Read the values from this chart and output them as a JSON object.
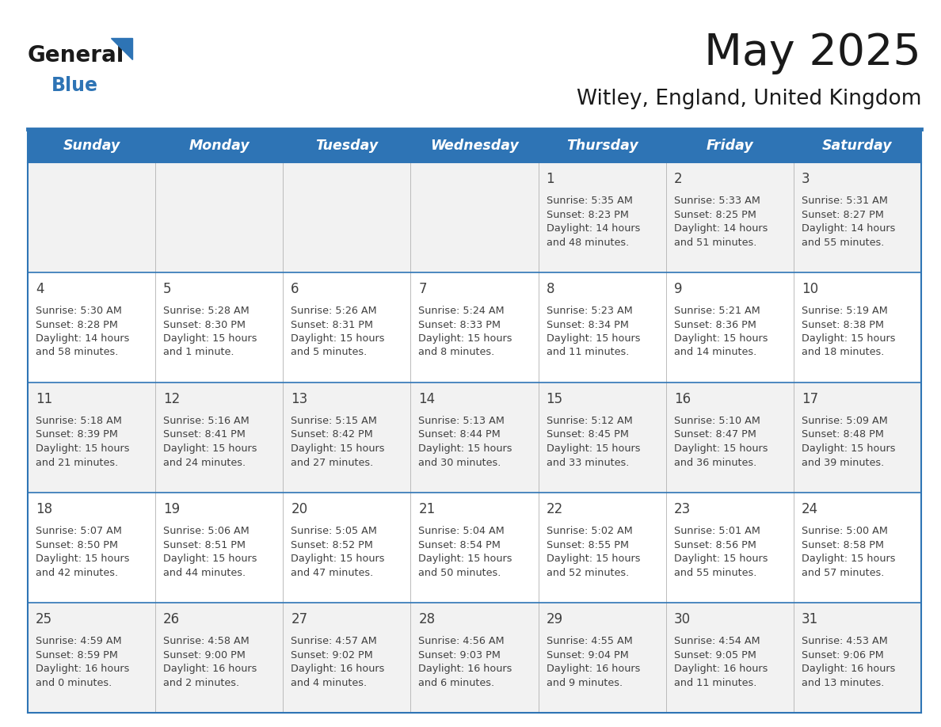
{
  "title": "May 2025",
  "subtitle": "Witley, England, United Kingdom",
  "days_of_week": [
    "Sunday",
    "Monday",
    "Tuesday",
    "Wednesday",
    "Thursday",
    "Friday",
    "Saturday"
  ],
  "header_bg": "#2E74B5",
  "header_text": "#FFFFFF",
  "cell_bg_odd": "#F2F2F2",
  "cell_bg_even": "#FFFFFF",
  "grid_line_color": "#2E74B5",
  "text_color": "#404040",
  "title_color": "#1a1a1a",
  "logo_text_color": "#1a1a1a",
  "logo_blue_color": "#2E74B5",
  "calendar_data": [
    [
      null,
      null,
      null,
      null,
      {
        "day": "1",
        "sunrise": "5:35 AM",
        "sunset": "8:23 PM",
        "daylight_h": "14 hours",
        "daylight_m": "and 48 minutes."
      },
      {
        "day": "2",
        "sunrise": "5:33 AM",
        "sunset": "8:25 PM",
        "daylight_h": "14 hours",
        "daylight_m": "and 51 minutes."
      },
      {
        "day": "3",
        "sunrise": "5:31 AM",
        "sunset": "8:27 PM",
        "daylight_h": "14 hours",
        "daylight_m": "and 55 minutes."
      }
    ],
    [
      {
        "day": "4",
        "sunrise": "5:30 AM",
        "sunset": "8:28 PM",
        "daylight_h": "14 hours",
        "daylight_m": "and 58 minutes."
      },
      {
        "day": "5",
        "sunrise": "5:28 AM",
        "sunset": "8:30 PM",
        "daylight_h": "15 hours",
        "daylight_m": "and 1 minute."
      },
      {
        "day": "6",
        "sunrise": "5:26 AM",
        "sunset": "8:31 PM",
        "daylight_h": "15 hours",
        "daylight_m": "and 5 minutes."
      },
      {
        "day": "7",
        "sunrise": "5:24 AM",
        "sunset": "8:33 PM",
        "daylight_h": "15 hours",
        "daylight_m": "and 8 minutes."
      },
      {
        "day": "8",
        "sunrise": "5:23 AM",
        "sunset": "8:34 PM",
        "daylight_h": "15 hours",
        "daylight_m": "and 11 minutes."
      },
      {
        "day": "9",
        "sunrise": "5:21 AM",
        "sunset": "8:36 PM",
        "daylight_h": "15 hours",
        "daylight_m": "and 14 minutes."
      },
      {
        "day": "10",
        "sunrise": "5:19 AM",
        "sunset": "8:38 PM",
        "daylight_h": "15 hours",
        "daylight_m": "and 18 minutes."
      }
    ],
    [
      {
        "day": "11",
        "sunrise": "5:18 AM",
        "sunset": "8:39 PM",
        "daylight_h": "15 hours",
        "daylight_m": "and 21 minutes."
      },
      {
        "day": "12",
        "sunrise": "5:16 AM",
        "sunset": "8:41 PM",
        "daylight_h": "15 hours",
        "daylight_m": "and 24 minutes."
      },
      {
        "day": "13",
        "sunrise": "5:15 AM",
        "sunset": "8:42 PM",
        "daylight_h": "15 hours",
        "daylight_m": "and 27 minutes."
      },
      {
        "day": "14",
        "sunrise": "5:13 AM",
        "sunset": "8:44 PM",
        "daylight_h": "15 hours",
        "daylight_m": "and 30 minutes."
      },
      {
        "day": "15",
        "sunrise": "5:12 AM",
        "sunset": "8:45 PM",
        "daylight_h": "15 hours",
        "daylight_m": "and 33 minutes."
      },
      {
        "day": "16",
        "sunrise": "5:10 AM",
        "sunset": "8:47 PM",
        "daylight_h": "15 hours",
        "daylight_m": "and 36 minutes."
      },
      {
        "day": "17",
        "sunrise": "5:09 AM",
        "sunset": "8:48 PM",
        "daylight_h": "15 hours",
        "daylight_m": "and 39 minutes."
      }
    ],
    [
      {
        "day": "18",
        "sunrise": "5:07 AM",
        "sunset": "8:50 PM",
        "daylight_h": "15 hours",
        "daylight_m": "and 42 minutes."
      },
      {
        "day": "19",
        "sunrise": "5:06 AM",
        "sunset": "8:51 PM",
        "daylight_h": "15 hours",
        "daylight_m": "and 44 minutes."
      },
      {
        "day": "20",
        "sunrise": "5:05 AM",
        "sunset": "8:52 PM",
        "daylight_h": "15 hours",
        "daylight_m": "and 47 minutes."
      },
      {
        "day": "21",
        "sunrise": "5:04 AM",
        "sunset": "8:54 PM",
        "daylight_h": "15 hours",
        "daylight_m": "and 50 minutes."
      },
      {
        "day": "22",
        "sunrise": "5:02 AM",
        "sunset": "8:55 PM",
        "daylight_h": "15 hours",
        "daylight_m": "and 52 minutes."
      },
      {
        "day": "23",
        "sunrise": "5:01 AM",
        "sunset": "8:56 PM",
        "daylight_h": "15 hours",
        "daylight_m": "and 55 minutes."
      },
      {
        "day": "24",
        "sunrise": "5:00 AM",
        "sunset": "8:58 PM",
        "daylight_h": "15 hours",
        "daylight_m": "and 57 minutes."
      }
    ],
    [
      {
        "day": "25",
        "sunrise": "4:59 AM",
        "sunset": "8:59 PM",
        "daylight_h": "16 hours",
        "daylight_m": "and 0 minutes."
      },
      {
        "day": "26",
        "sunrise": "4:58 AM",
        "sunset": "9:00 PM",
        "daylight_h": "16 hours",
        "daylight_m": "and 2 minutes."
      },
      {
        "day": "27",
        "sunrise": "4:57 AM",
        "sunset": "9:02 PM",
        "daylight_h": "16 hours",
        "daylight_m": "and 4 minutes."
      },
      {
        "day": "28",
        "sunrise": "4:56 AM",
        "sunset": "9:03 PM",
        "daylight_h": "16 hours",
        "daylight_m": "and 6 minutes."
      },
      {
        "day": "29",
        "sunrise": "4:55 AM",
        "sunset": "9:04 PM",
        "daylight_h": "16 hours",
        "daylight_m": "and 9 minutes."
      },
      {
        "day": "30",
        "sunrise": "4:54 AM",
        "sunset": "9:05 PM",
        "daylight_h": "16 hours",
        "daylight_m": "and 11 minutes."
      },
      {
        "day": "31",
        "sunrise": "4:53 AM",
        "sunset": "9:06 PM",
        "daylight_h": "16 hours",
        "daylight_m": "and 13 minutes."
      }
    ]
  ]
}
